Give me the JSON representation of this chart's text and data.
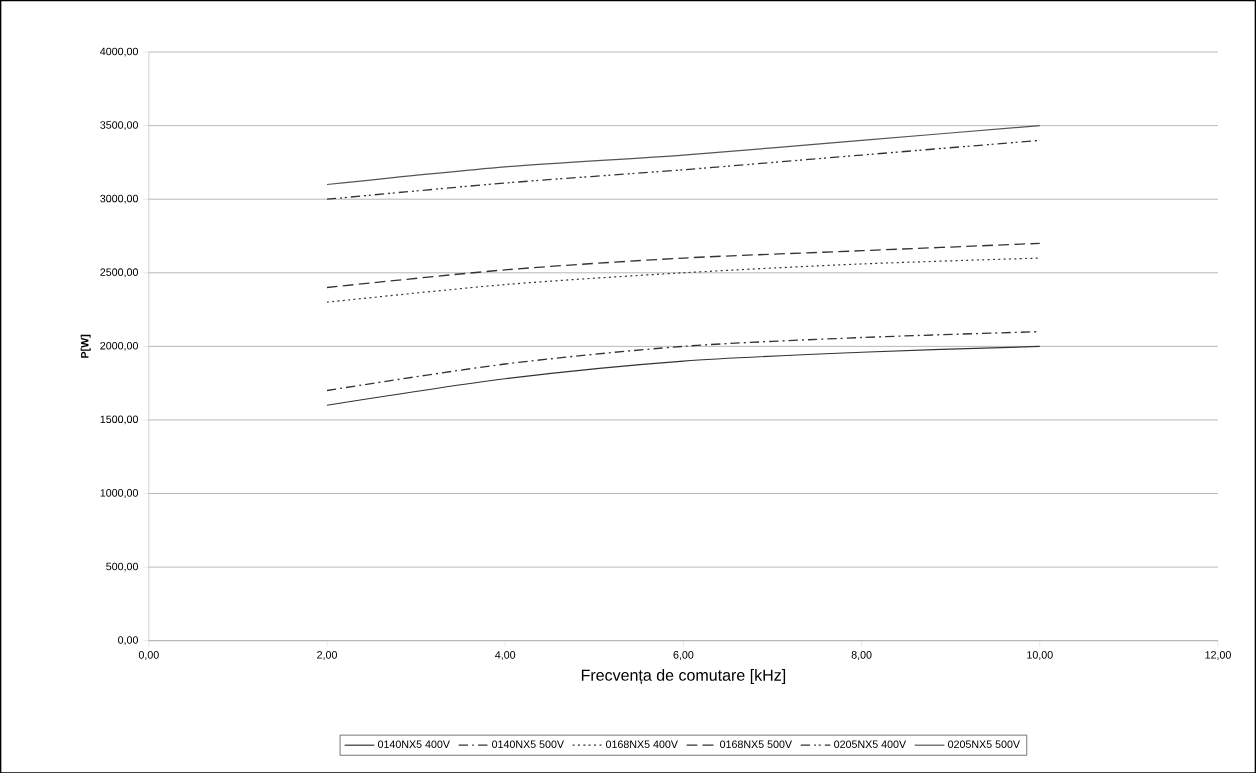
{
  "chart_data": {
    "type": "line",
    "xlabel": "Frecvența de comutare [kHz]",
    "ylabel": "P[W]",
    "x": [
      2,
      4,
      6,
      8,
      10
    ],
    "series": [
      {
        "name": "0140NX5 400V",
        "color": "#333333",
        "line_style": "solid",
        "values": [
          1600,
          1780,
          1900,
          1960,
          2000
        ]
      },
      {
        "name": "0140NX5 500V",
        "color": "#333333",
        "line_style": "dashdot",
        "values": [
          1700,
          1880,
          2000,
          2060,
          2100
        ]
      },
      {
        "name": "0168NX5 400V",
        "color": "#333333",
        "line_style": "dotted",
        "values": [
          2300,
          2420,
          2500,
          2560,
          2600
        ]
      },
      {
        "name": "0168NX5 500V",
        "color": "#333333",
        "line_style": "dashed",
        "values": [
          2400,
          2520,
          2600,
          2650,
          2700
        ]
      },
      {
        "name": "0205NX5 400V",
        "color": "#333333",
        "line_style": "dashdotdot",
        "values": [
          3000,
          3110,
          3200,
          3300,
          3400
        ]
      },
      {
        "name": "0205NX5 500V",
        "color": "#555555",
        "line_style": "solid",
        "values": [
          3100,
          3220,
          3300,
          3400,
          3500
        ]
      }
    ],
    "xlim": [
      0,
      12
    ],
    "ylim": [
      0,
      4000
    ],
    "xticks": [
      {
        "value": 0,
        "label": "0,00"
      },
      {
        "value": 2,
        "label": "2,00"
      },
      {
        "value": 4,
        "label": "4,00"
      },
      {
        "value": 6,
        "label": "6,00"
      },
      {
        "value": 8,
        "label": "8,00"
      },
      {
        "value": 10,
        "label": "10,00"
      },
      {
        "value": 12,
        "label": "12,00"
      }
    ],
    "yticks": [
      {
        "value": 0,
        "label": "0,00"
      },
      {
        "value": 500,
        "label": "500,00"
      },
      {
        "value": 1000,
        "label": "1000,00"
      },
      {
        "value": 1500,
        "label": "1500,00"
      },
      {
        "value": 2000,
        "label": "2000,00"
      },
      {
        "value": 2500,
        "label": "2500,00"
      },
      {
        "value": 3000,
        "label": "3000,00"
      },
      {
        "value": 3500,
        "label": "3500,00"
      },
      {
        "value": 4000,
        "label": "4000,00"
      }
    ],
    "grid": "y",
    "legend": "bottom",
    "marker": "none"
  }
}
